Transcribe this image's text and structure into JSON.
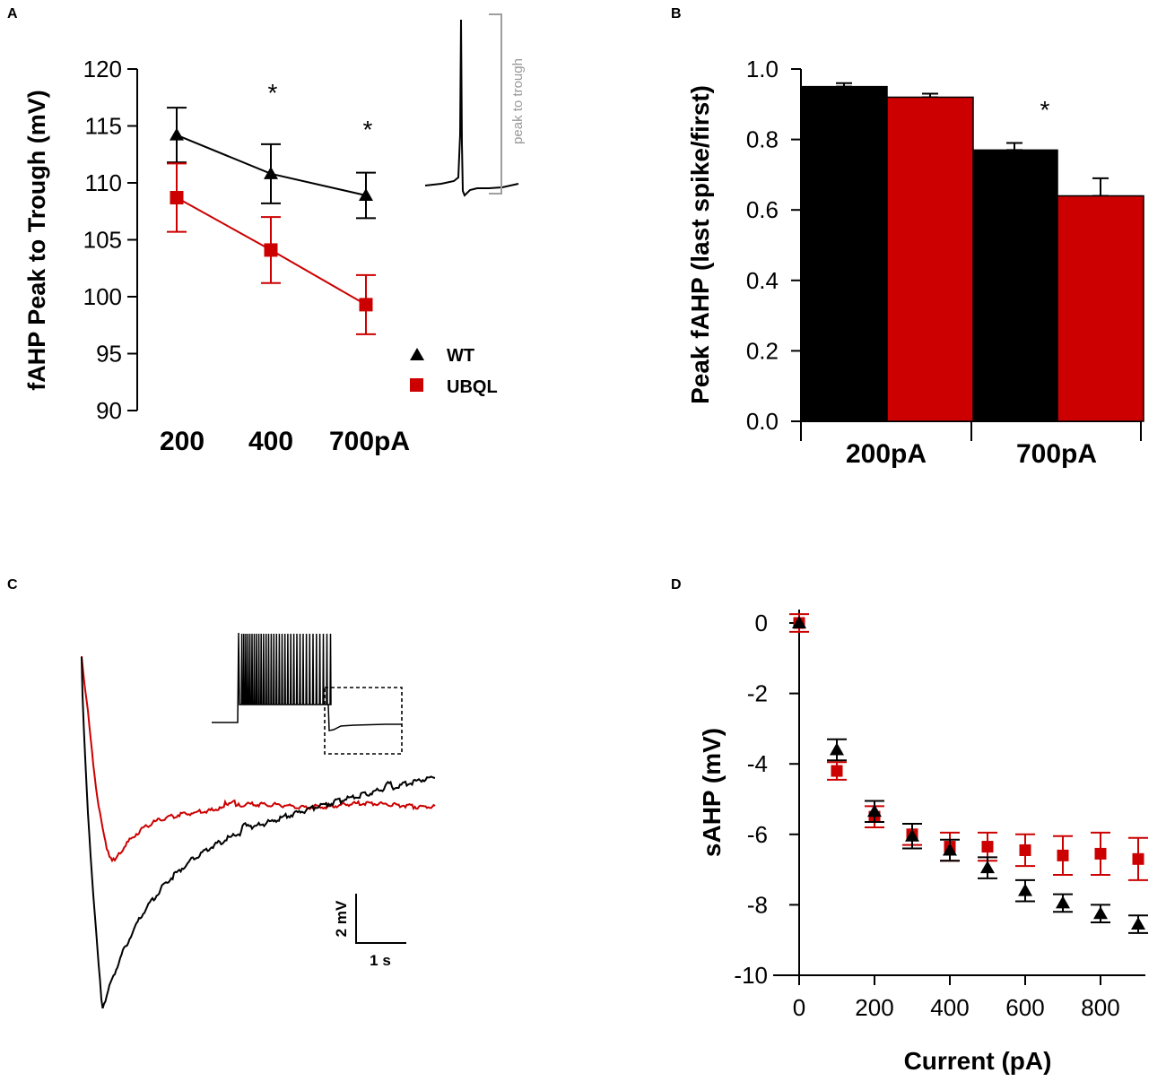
{
  "colors": {
    "wt": "#000000",
    "ubql": "#cc0000",
    "inset_bracket": "#9e9e9e"
  },
  "chart_data": [
    {
      "panel": "A",
      "type": "line",
      "ylabel": "fAHP Peak to Trough (mV)",
      "ylim": [
        90,
        120
      ],
      "yticks": [
        90,
        95,
        100,
        105,
        110,
        115,
        120
      ],
      "categories": [
        "200",
        "400",
        "700pA"
      ],
      "series": [
        {
          "name": "WT",
          "marker": "triangle",
          "values": [
            114.2,
            110.8,
            108.9
          ],
          "errors": [
            2.4,
            2.6,
            2.0
          ]
        },
        {
          "name": "UBQL",
          "marker": "square",
          "values": [
            108.7,
            104.1,
            99.3
          ],
          "errors": [
            3.0,
            2.9,
            2.6
          ]
        }
      ],
      "annotations": [
        "*",
        "*"
      ],
      "significant_indices": [
        1,
        2
      ],
      "inset_label": "peak to trough",
      "legend": [
        "WT",
        "UBQL"
      ]
    },
    {
      "panel": "B",
      "type": "bar",
      "ylabel": "Peak fAHP (last spike/first)",
      "ylim": [
        0,
        1.0
      ],
      "yticks": [
        "0.0",
        "0.2",
        "0.4",
        "0.6",
        "0.8",
        "1.0"
      ],
      "categories": [
        "200pA",
        "700pA"
      ],
      "series": [
        {
          "name": "WT",
          "values": [
            0.95,
            0.77
          ],
          "errors": [
            0.01,
            0.02
          ]
        },
        {
          "name": "UBQL",
          "values": [
            0.92,
            0.64
          ],
          "errors": [
            0.01,
            0.05
          ]
        }
      ],
      "annotations": [
        "*"
      ],
      "significant_indices": [
        1
      ]
    },
    {
      "panel": "C",
      "type": "line",
      "description_traces": [
        "UBQL sAHP trace",
        "WT sAHP trace",
        "inset spike train"
      ],
      "scale_bar": {
        "y_label": "2 mV",
        "x_label": "1 s"
      }
    },
    {
      "panel": "D",
      "type": "scatter",
      "ylabel": "sAHP (mV)",
      "xlabel": "Current (pA)",
      "xlim": [
        0,
        900
      ],
      "ylim": [
        -10,
        0
      ],
      "xticks": [
        0,
        200,
        400,
        600,
        800
      ],
      "yticks": [
        0,
        -2,
        -4,
        -6,
        -8,
        -10
      ],
      "x": [
        0,
        100,
        200,
        300,
        400,
        500,
        600,
        700,
        800,
        900
      ],
      "series": [
        {
          "name": "WT",
          "marker": "triangle",
          "values": [
            0,
            -3.6,
            -5.35,
            -6.05,
            -6.45,
            -6.95,
            -7.6,
            -7.95,
            -8.25,
            -8.55
          ],
          "errors": [
            0,
            0.3,
            0.3,
            0.35,
            0.3,
            0.3,
            0.3,
            0.25,
            0.25,
            0.25
          ]
        },
        {
          "name": "UBQL",
          "marker": "square",
          "values": [
            0,
            -4.2,
            -5.5,
            -6.0,
            -6.35,
            -6.35,
            -6.45,
            -6.6,
            -6.55,
            -6.7
          ],
          "errors": [
            0.25,
            0.25,
            0.3,
            0.3,
            0.4,
            0.4,
            0.45,
            0.55,
            0.6,
            0.6
          ]
        }
      ]
    }
  ]
}
